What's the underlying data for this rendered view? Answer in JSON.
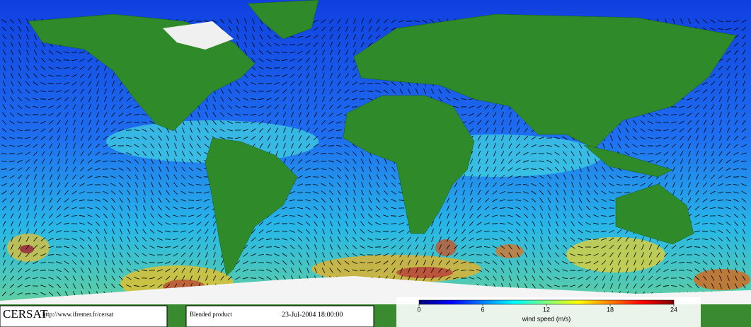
{
  "header": {
    "logo": "CERSAT",
    "url": "http://www.ifremer.fr/cersat",
    "product": "Blended product",
    "date": "23-Jul-2004 18:00:00"
  },
  "colorbar": {
    "title": "wind speed (m/s)",
    "lim": [
      0,
      24
    ],
    "ticks": [
      0,
      6,
      12,
      18,
      24
    ],
    "colors": [
      "#00007f",
      "#0000ff",
      "#0080ff",
      "#00ffff",
      "#80ff80",
      "#ffff00",
      "#ff8000",
      "#ff0000",
      "#7f0000"
    ]
  }
}
